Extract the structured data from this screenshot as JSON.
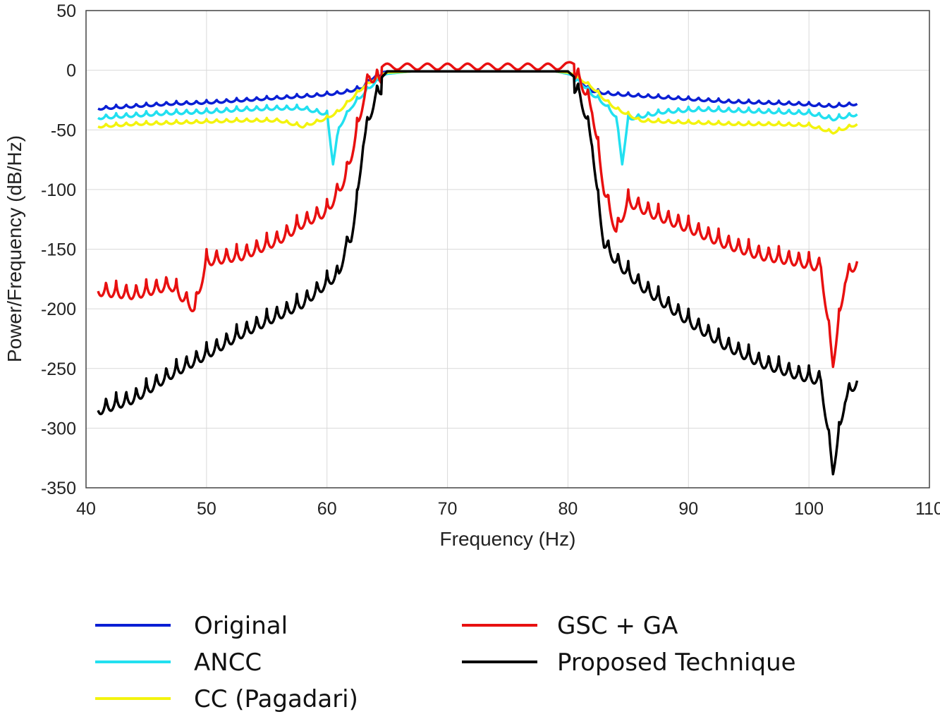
{
  "chart_data": {
    "type": "line",
    "title": "",
    "xlabel": "Frequency (Hz)",
    "ylabel": "Power/Frequency (dB/Hz)",
    "xlim": [
      40,
      110
    ],
    "ylim": [
      -350,
      50
    ],
    "xticks": [
      40,
      50,
      60,
      70,
      80,
      90,
      100,
      110
    ],
    "yticks": [
      50,
      0,
      -50,
      -100,
      -150,
      -200,
      -250,
      -300,
      -350
    ],
    "grid": true,
    "legend_position": "bottom",
    "series": [
      {
        "name": "Original",
        "color": "#0a1fd4",
        "x": [
          41,
          44,
          47,
          50,
          53,
          56,
          59,
          61,
          62,
          63,
          63.5,
          64,
          65,
          67,
          70,
          73,
          76,
          79,
          80,
          81,
          81.5,
          82,
          83,
          84,
          87,
          90,
          93,
          96,
          99,
          102,
          104
        ],
        "y": [
          -30,
          -28,
          -26,
          -25,
          -23,
          -21,
          -19,
          -17,
          -15,
          -12,
          -6,
          -3,
          -1,
          -1,
          -1,
          -1,
          -1,
          -1,
          -3,
          -6,
          -12,
          -15,
          -17,
          -18,
          -20,
          -22,
          -24,
          -25,
          -26,
          -28,
          -26
        ]
      },
      {
        "name": "ANCC",
        "color": "#22e0f0",
        "x": [
          41,
          44,
          47,
          50,
          53,
          56,
          58,
          60,
          60.5,
          61,
          62,
          63,
          64,
          65,
          67,
          70,
          73,
          76,
          79,
          80,
          81,
          82,
          83,
          84,
          84.5,
          85,
          88,
          91,
          94,
          97,
          100,
          102,
          104
        ],
        "y": [
          -37,
          -35,
          -33,
          -32,
          -30,
          -29,
          -29,
          -34,
          -75,
          -45,
          -28,
          -17,
          -7,
          -3,
          -1,
          -1,
          -1,
          -1,
          -1,
          -3,
          -7,
          -17,
          -25,
          -36,
          -75,
          -38,
          -32,
          -30,
          -31,
          -32,
          -33,
          -38,
          -34
        ]
      },
      {
        "name": "CC (Pagadari)",
        "color": "#f3f30e",
        "x": [
          41,
          44,
          47,
          50,
          53,
          56,
          58,
          60,
          61,
          62,
          63,
          64,
          65,
          67,
          70,
          73,
          76,
          79,
          80,
          81,
          82,
          83,
          84,
          86,
          88,
          91,
          94,
          97,
          100,
          102,
          104
        ],
        "y": [
          -45,
          -43,
          -42,
          -41,
          -40,
          -40,
          -45,
          -38,
          -32,
          -22,
          -12,
          -5,
          -2,
          -1,
          -1,
          -1,
          -1,
          -1,
          -2,
          -5,
          -12,
          -22,
          -30,
          -40,
          -41,
          -42,
          -43,
          -43,
          -44,
          -50,
          -43
        ]
      },
      {
        "name": "GSC + GA",
        "color": "#e81010",
        "x": [
          41,
          44,
          47,
          49,
          50,
          53,
          56,
          58,
          60,
          61,
          61.5,
          62,
          62.5,
          63,
          63.5,
          64,
          65,
          67,
          70,
          73,
          76,
          79,
          80,
          80.5,
          81,
          81.5,
          82,
          83,
          84,
          85,
          87,
          90,
          93,
          96,
          99,
          101,
          102,
          103,
          104
        ],
        "y": [
          -175,
          -178,
          -170,
          -190,
          -150,
          -145,
          -132,
          -118,
          -108,
          -90,
          -80,
          -62,
          -40,
          -15,
          5,
          3,
          3,
          3,
          3,
          3,
          3,
          3,
          4,
          6,
          3,
          -10,
          -22,
          -90,
          -125,
          -100,
          -110,
          -122,
          -135,
          -145,
          -150,
          -155,
          -235,
          -165,
          -150
        ]
      },
      {
        "name": "Proposed Technique",
        "color": "#000000",
        "x": [
          41,
          44,
          47,
          50,
          53,
          56,
          58,
          60,
          61,
          61.5,
          62,
          62.5,
          63,
          64,
          65,
          67,
          70,
          73,
          76,
          79,
          80,
          81,
          82,
          82.5,
          83,
          84,
          86,
          88,
          90,
          93,
          96,
          99,
          101,
          102,
          103,
          104
        ],
        "y": [
          -275,
          -265,
          -245,
          -228,
          -210,
          -195,
          -185,
          -168,
          -160,
          -140,
          -130,
          -100,
          -50,
          -12,
          -1,
          -1,
          -1,
          -1,
          -1,
          -1,
          -1,
          -10,
          -50,
          -100,
          -135,
          -150,
          -170,
          -185,
          -200,
          -220,
          -235,
          -245,
          -250,
          -325,
          -265,
          -250
        ]
      }
    ]
  }
}
